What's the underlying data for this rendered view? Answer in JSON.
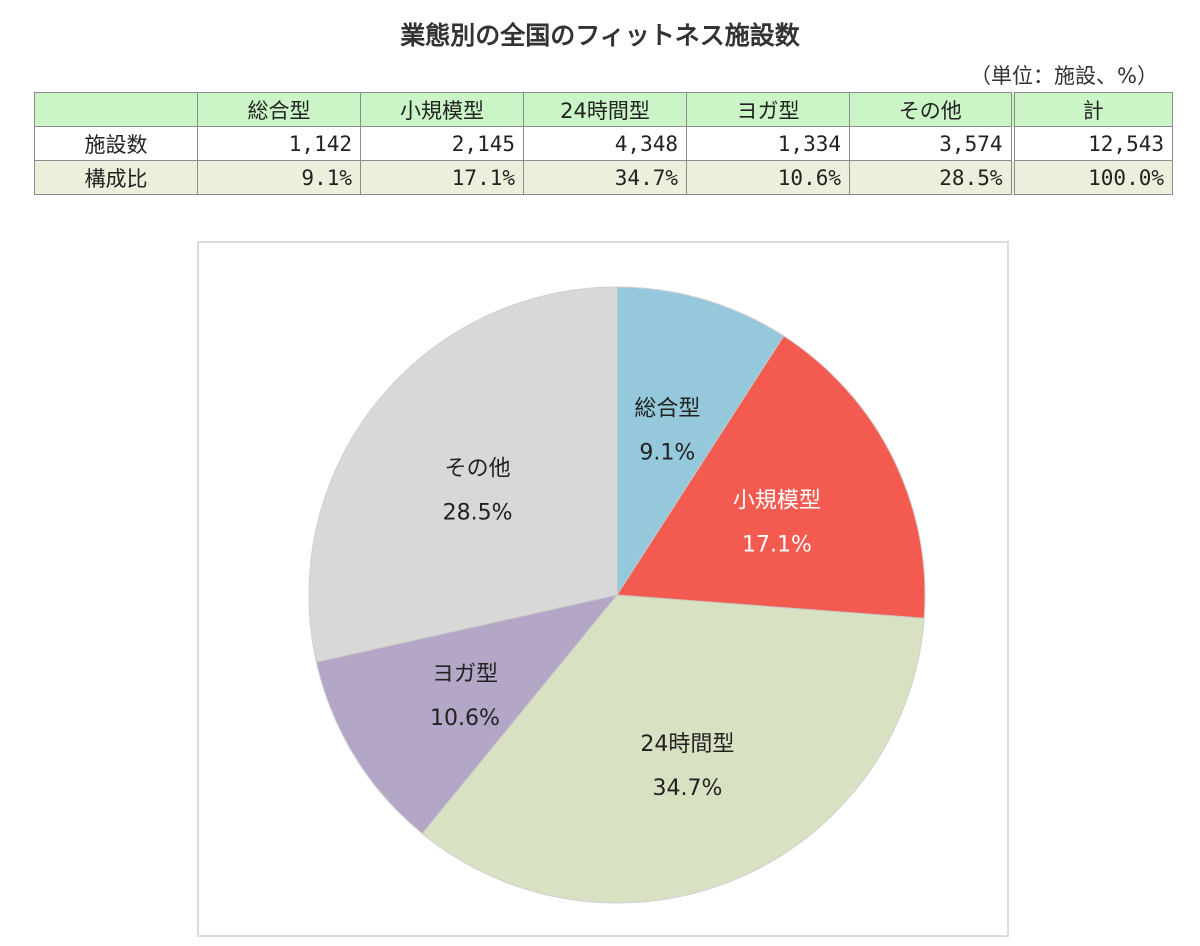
{
  "title": "業態別の全国のフィットネス施設数",
  "unit_note": "（単位：施設、%）",
  "table": {
    "columns": [
      "",
      "総合型",
      "小規模型",
      "24時間型",
      "ヨガ型",
      "その他",
      "計"
    ],
    "rows": [
      {
        "label": "施設数",
        "values": [
          "1,142",
          "2,145",
          "4,348",
          "1,334",
          "3,574",
          "12,543"
        ]
      },
      {
        "label": "構成比",
        "values": [
          "9.1%",
          "17.1%",
          "34.7%",
          "10.6%",
          "28.5%",
          "100.0%"
        ]
      }
    ]
  },
  "chart_data": {
    "type": "pie",
    "title": "",
    "categories": [
      "総合型",
      "小規模型",
      "24時間型",
      "ヨガ型",
      "その他"
    ],
    "values": [
      9.1,
      17.1,
      34.7,
      10.6,
      28.5
    ],
    "labels": [
      "9.1%",
      "17.1%",
      "34.7%",
      "10.6%",
      "28.5%"
    ],
    "counts": [
      1142,
      2145,
      4348,
      1334,
      3574
    ],
    "colors": [
      "#96c8dc",
      "#f45b50",
      "#d8e2c2",
      "#b4a6c6",
      "#d8d8d8"
    ],
    "label_colors": [
      "#222222",
      "#ffffff",
      "#222222",
      "#222222",
      "#222222"
    ],
    "start": "12 o'clock",
    "direction": "clockwise",
    "legend": "none"
  }
}
